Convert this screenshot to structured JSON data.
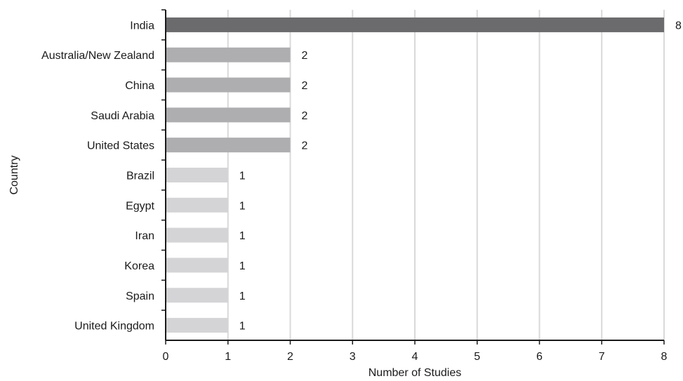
{
  "chart_data": {
    "type": "bar",
    "orientation": "horizontal",
    "title": "",
    "xlabel": "Number of Studies",
    "ylabel": "Country",
    "categories": [
      "India",
      "Australia/New Zealand",
      "China",
      "Saudi Arabia",
      "United States",
      "Brazil",
      "Egypt",
      "Iran",
      "Korea",
      "Spain",
      "United Kingdom"
    ],
    "values": [
      8,
      2,
      2,
      2,
      2,
      1,
      1,
      1,
      1,
      1,
      1
    ],
    "xlim": [
      0,
      8
    ],
    "xticks": [
      0,
      1,
      2,
      3,
      4,
      5,
      6,
      7,
      8
    ],
    "grid": "vertical",
    "legend": "none",
    "data_labels": true,
    "colors": {
      "count_8": "#6b6b6e",
      "count_2": "#aeaeb1",
      "count_1": "#d4d4d6",
      "gridline": "#d9d9d9",
      "axis": "#1a1a1a"
    }
  }
}
